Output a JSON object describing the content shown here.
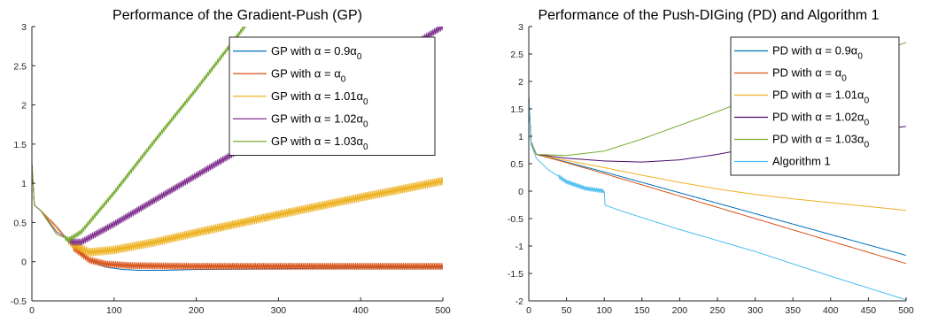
{
  "chart_data": [
    {
      "type": "line",
      "title": "Performance of the Gradient-Push (GP)",
      "xlabel": "",
      "ylabel": "",
      "xlim": [
        0,
        500
      ],
      "ylim": [
        -0.5,
        3
      ],
      "xticks": [
        "0",
        "100",
        "200",
        "300",
        "400",
        "500"
      ],
      "yticks": [
        "-0.5",
        "0",
        "0.5",
        "1",
        "1.5",
        "2",
        "2.5",
        "3"
      ],
      "grid": false,
      "legend_position": "top-right",
      "series": [
        {
          "name": "GP with α = 0.9α0",
          "label_main": "GP with α = 0.9α",
          "label_sub": "0",
          "color": "#0072BD",
          "points": [
            [
              0,
              1.25
            ],
            [
              3,
              0.72
            ],
            [
              10,
              0.66
            ],
            [
              30,
              0.45
            ],
            [
              50,
              0.2
            ],
            [
              70,
              0.02
            ],
            [
              90,
              -0.07
            ],
            [
              110,
              -0.1
            ],
            [
              130,
              -0.11
            ],
            [
              160,
              -0.11
            ],
            [
              200,
              -0.1
            ],
            [
              300,
              -0.09
            ],
            [
              400,
              -0.08
            ],
            [
              500,
              -0.08
            ]
          ],
          "osc_amp": 0,
          "osc_from": 0
        },
        {
          "name": "GP with α = α0",
          "label_main": "GP with α = α",
          "label_sub": "0",
          "color": "#D95319",
          "points": [
            [
              0,
              1.25
            ],
            [
              3,
              0.72
            ],
            [
              10,
              0.66
            ],
            [
              30,
              0.45
            ],
            [
              50,
              0.18
            ],
            [
              70,
              0.02
            ],
            [
              90,
              -0.03
            ],
            [
              120,
              -0.05
            ],
            [
              200,
              -0.06
            ],
            [
              300,
              -0.06
            ],
            [
              400,
              -0.06
            ],
            [
              500,
              -0.06
            ]
          ],
          "osc_amp": 0.04,
          "osc_from": 50
        },
        {
          "name": "GP with α = 1.01α0",
          "label_main": "GP with α = 1.01α",
          "label_sub": "0",
          "color": "#EDB120",
          "points": [
            [
              0,
              1.25
            ],
            [
              3,
              0.72
            ],
            [
              10,
              0.66
            ],
            [
              30,
              0.42
            ],
            [
              50,
              0.22
            ],
            [
              70,
              0.12
            ],
            [
              100,
              0.15
            ],
            [
              150,
              0.25
            ],
            [
              200,
              0.37
            ],
            [
              300,
              0.6
            ],
            [
              400,
              0.82
            ],
            [
              500,
              1.03
            ]
          ],
          "osc_amp": 0.05,
          "osc_from": 45
        },
        {
          "name": "GP with α = 1.02α0",
          "label_main": "GP with α = 1.02α",
          "label_sub": "0",
          "color": "#7E2F8E",
          "points": [
            [
              0,
              1.25
            ],
            [
              3,
              0.72
            ],
            [
              10,
              0.66
            ],
            [
              30,
              0.38
            ],
            [
              50,
              0.25
            ],
            [
              60,
              0.25
            ],
            [
              100,
              0.48
            ],
            [
              200,
              1.1
            ],
            [
              300,
              1.72
            ],
            [
              400,
              2.36
            ],
            [
              500,
              3.0
            ]
          ],
          "osc_amp": 0.04,
          "osc_from": 45
        },
        {
          "name": "GP with α = 1.03α0",
          "label_main": "GP with α = 1.03α",
          "label_sub": "0",
          "color": "#77AC30",
          "points": [
            [
              0,
              1.25
            ],
            [
              3,
              0.72
            ],
            [
              10,
              0.66
            ],
            [
              30,
              0.35
            ],
            [
              45,
              0.28
            ],
            [
              60,
              0.38
            ],
            [
              100,
              0.88
            ],
            [
              150,
              1.55
            ],
            [
              200,
              2.2
            ],
            [
              250,
              2.88
            ],
            [
              275,
              3.22
            ]
          ],
          "osc_amp": 0.03,
          "osc_from": 40
        }
      ]
    },
    {
      "type": "line",
      "title": "Performance of the Push-DIGing (PD) and Algorithm 1",
      "xlabel": "",
      "ylabel": "",
      "xlim": [
        0,
        500
      ],
      "ylim": [
        -2,
        3
      ],
      "xticks": [
        "0",
        "50",
        "100",
        "150",
        "200",
        "250",
        "300",
        "350",
        "400",
        "450",
        "500"
      ],
      "yticks": [
        "-2",
        "-1.5",
        "-1",
        "-0.5",
        "0",
        "0.5",
        "1",
        "1.5",
        "2",
        "2.5",
        "3"
      ],
      "grid": false,
      "legend_position": "top-right",
      "series": [
        {
          "name": "PD with α = 0.9α0",
          "label_main": "PD with α = 0.9α",
          "label_sub": "0",
          "color": "#0072BD",
          "points": [
            [
              0,
              1.72
            ],
            [
              3,
              0.9
            ],
            [
              10,
              0.67
            ],
            [
              50,
              0.53
            ],
            [
              100,
              0.35
            ],
            [
              200,
              -0.03
            ],
            [
              300,
              -0.41
            ],
            [
              400,
              -0.79
            ],
            [
              500,
              -1.17
            ]
          ],
          "osc_amp": 0,
          "osc_from": 0
        },
        {
          "name": "PD with α = α0",
          "label_main": "PD with α = α",
          "label_sub": "0",
          "color": "#D95319",
          "points": [
            [
              0,
              1.72
            ],
            [
              3,
              0.9
            ],
            [
              10,
              0.67
            ],
            [
              50,
              0.52
            ],
            [
              100,
              0.32
            ],
            [
              200,
              -0.09
            ],
            [
              300,
              -0.5
            ],
            [
              400,
              -0.91
            ],
            [
              500,
              -1.32
            ]
          ],
          "osc_amp": 0,
          "osc_from": 0
        },
        {
          "name": "PD with α = 1.01α0",
          "label_main": "PD with α = 1.01α",
          "label_sub": "0",
          "color": "#EDB120",
          "points": [
            [
              0,
              1.72
            ],
            [
              3,
              0.9
            ],
            [
              10,
              0.67
            ],
            [
              50,
              0.56
            ],
            [
              100,
              0.43
            ],
            [
              150,
              0.29
            ],
            [
              200,
              0.16
            ],
            [
              250,
              0.04
            ],
            [
              300,
              -0.06
            ],
            [
              350,
              -0.14
            ],
            [
              400,
              -0.21
            ],
            [
              450,
              -0.28
            ],
            [
              500,
              -0.35
            ]
          ],
          "osc_amp": 0,
          "osc_from": 0
        },
        {
          "name": "PD with α = 1.02α0",
          "label_main": "PD with α = 1.02α",
          "label_sub": "0",
          "color": "#4B0C6B",
          "points": [
            [
              0,
              1.72
            ],
            [
              3,
              0.9
            ],
            [
              10,
              0.67
            ],
            [
              50,
              0.6
            ],
            [
              100,
              0.55
            ],
            [
              150,
              0.53
            ],
            [
              200,
              0.57
            ],
            [
              250,
              0.67
            ],
            [
              300,
              0.8
            ],
            [
              350,
              0.91
            ],
            [
              400,
              1.0
            ],
            [
              450,
              1.09
            ],
            [
              500,
              1.18
            ]
          ],
          "osc_amp": 0,
          "osc_from": 0
        },
        {
          "name": "PD with α = 1.03α0",
          "label_main": "PD with α = 1.03α",
          "label_sub": "0",
          "color": "#77AC30",
          "points": [
            [
              0,
              1.72
            ],
            [
              3,
              0.9
            ],
            [
              10,
              0.67
            ],
            [
              50,
              0.65
            ],
            [
              100,
              0.73
            ],
            [
              150,
              0.95
            ],
            [
              200,
              1.2
            ],
            [
              250,
              1.45
            ],
            [
              300,
              1.72
            ],
            [
              350,
              1.98
            ],
            [
              400,
              2.22
            ],
            [
              450,
              2.47
            ],
            [
              500,
              2.71
            ]
          ],
          "osc_amp": 0,
          "osc_from": 0
        },
        {
          "name": "Algorithm 1",
          "label_main": "Algorithm 1",
          "label_sub": "",
          "color": "#4DBEEE",
          "points": [
            [
              0,
              1.72
            ],
            [
              3,
              0.85
            ],
            [
              10,
              0.6
            ],
            [
              25,
              0.4
            ],
            [
              50,
              0.17
            ],
            [
              75,
              0.05
            ],
            [
              100,
              0.0
            ],
            [
              100.5,
              -0.25
            ],
            [
              120,
              -0.35
            ],
            [
              200,
              -0.7
            ],
            [
              300,
              -1.1
            ],
            [
              400,
              -1.55
            ],
            [
              500,
              -1.98
            ]
          ],
          "osc_amp": 0.035,
          "osc_from": 40,
          "osc_to": 100
        }
      ]
    }
  ]
}
